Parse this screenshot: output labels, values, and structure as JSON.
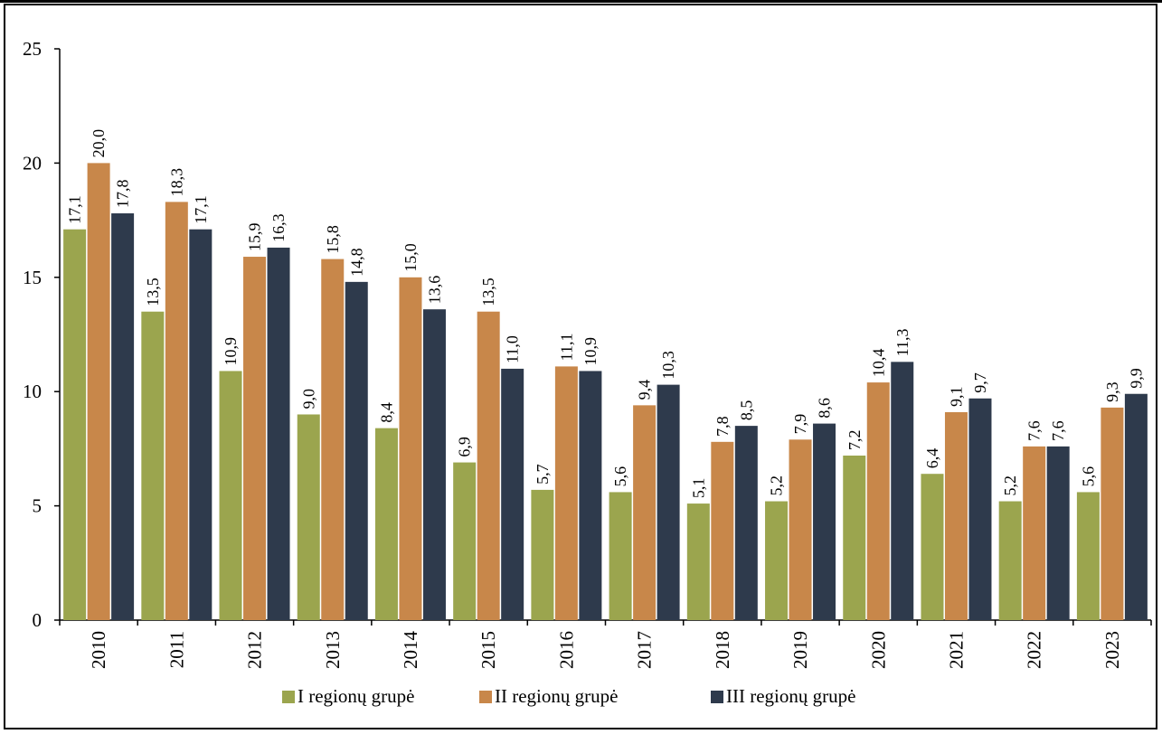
{
  "chart_data": {
    "type": "bar",
    "title": "",
    "xlabel": "",
    "ylabel": "",
    "ylim": [
      0,
      25
    ],
    "yticks": [
      "0",
      "5",
      "10",
      "15",
      "20",
      "25"
    ],
    "categories": [
      "2010",
      "2011",
      "2012",
      "2013",
      "2014",
      "2015",
      "2016",
      "2017",
      "2018",
      "2019",
      "2020",
      "2021",
      "2022",
      "2023"
    ],
    "series": [
      {
        "name": "I regionų grupė",
        "color": "#9BA54E",
        "values": [
          17.1,
          13.5,
          10.9,
          9.0,
          8.4,
          6.9,
          5.7,
          5.6,
          5.1,
          5.2,
          7.2,
          6.4,
          5.2,
          5.6
        ],
        "labels": [
          "17,1",
          "13,5",
          "10,9",
          "9,0",
          "8,4",
          "6,9",
          "5,7",
          "5,6",
          "5,1",
          "5,2",
          "7,2",
          "6,4",
          "5,2",
          "5,6"
        ]
      },
      {
        "name": "II regionų grupė",
        "color": "#C8874A",
        "values": [
          20.0,
          18.3,
          15.9,
          15.8,
          15.0,
          13.5,
          11.1,
          9.4,
          7.8,
          7.9,
          10.4,
          9.1,
          7.6,
          9.3
        ],
        "labels": [
          "20,0",
          "18,3",
          "15,9",
          "15,8",
          "15,0",
          "13,5",
          "11,1",
          "9,4",
          "7,8",
          "7,9",
          "10,4",
          "9,1",
          "7,6",
          "9,3"
        ]
      },
      {
        "name": "III regionų grupė",
        "color": "#2E3A4C",
        "values": [
          17.8,
          17.1,
          16.3,
          14.8,
          13.6,
          11.0,
          10.9,
          10.3,
          8.5,
          8.6,
          11.3,
          9.7,
          7.6,
          9.9
        ],
        "labels": [
          "17,8",
          "17,1",
          "16,3",
          "14,8",
          "13,6",
          "11,0",
          "10,9",
          "10,3",
          "8,5",
          "8,6",
          "11,3",
          "9,7",
          "7,6",
          "9,9"
        ]
      }
    ],
    "grid": false,
    "legend_position": "bottom"
  }
}
